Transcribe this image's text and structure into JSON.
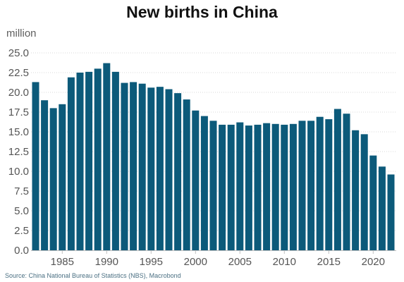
{
  "chart_data": {
    "type": "bar",
    "title": "New births in China",
    "ylabel": "million",
    "xlabel": "",
    "source": "Source: China National Bureau of Statistics (NBS), Macrobond",
    "ylim": [
      0,
      25
    ],
    "yticks": [
      "0.0",
      "2.5",
      "5.0",
      "7.5",
      "10.0",
      "12.5",
      "15.0",
      "17.5",
      "20.0",
      "22.5",
      "25.0"
    ],
    "xticks": [
      "1985",
      "1990",
      "1995",
      "2000",
      "2005",
      "2010",
      "2015",
      "2020"
    ],
    "grid": true,
    "bar_color": "#0c5a7a",
    "categories": [
      1982,
      1983,
      1984,
      1985,
      1986,
      1987,
      1988,
      1989,
      1990,
      1991,
      1992,
      1993,
      1994,
      1995,
      1996,
      1997,
      1998,
      1999,
      2000,
      2001,
      2002,
      2003,
      2004,
      2005,
      2006,
      2007,
      2008,
      2009,
      2010,
      2011,
      2012,
      2013,
      2014,
      2015,
      2016,
      2017,
      2018,
      2019,
      2020,
      2021,
      2022
    ],
    "values": [
      21.3,
      19.0,
      18.0,
      18.5,
      21.9,
      22.5,
      22.6,
      23.0,
      23.7,
      22.6,
      21.2,
      21.3,
      21.1,
      20.6,
      20.7,
      20.4,
      19.9,
      19.1,
      17.7,
      17.0,
      16.4,
      15.9,
      15.9,
      16.2,
      15.8,
      15.9,
      16.1,
      16.0,
      15.9,
      16.0,
      16.4,
      16.4,
      16.9,
      16.6,
      17.9,
      17.3,
      15.2,
      14.7,
      12.0,
      10.6,
      9.6
    ]
  }
}
